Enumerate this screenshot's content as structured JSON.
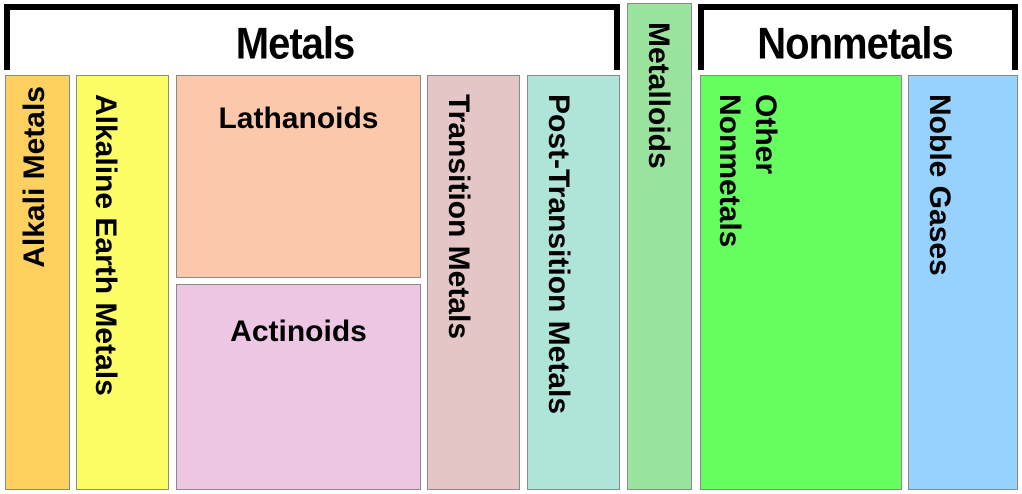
{
  "headings": {
    "metals": "Metals",
    "nonmetals": "Nonmetals"
  },
  "categories": {
    "alkali_metals": {
      "label": "Alkali Metals",
      "color": "#fdd05f"
    },
    "alkaline_earth_metals": {
      "label": "Alkaline Earth Metals",
      "color": "#fdfd66"
    },
    "lanthanoids": {
      "label": "Lathanoids",
      "color": "#fcc8ab"
    },
    "actinoids": {
      "label": "Actinoids",
      "color": "#edc6e3"
    },
    "transition_metals": {
      "label": "Transition Metals",
      "color": "#e4c6c6"
    },
    "post_transition_metals": {
      "label": "Post-Transition Metals",
      "color": "#afe4d8"
    },
    "metalloids": {
      "label": "Metalloids",
      "color": "#9ae39f"
    },
    "other_nonmetals": {
      "label_line1": "Other",
      "label_line2": "Nonmetals",
      "color": "#66fd5f"
    },
    "noble_gases": {
      "label": "Noble Gases",
      "color": "#97d1fd"
    }
  }
}
